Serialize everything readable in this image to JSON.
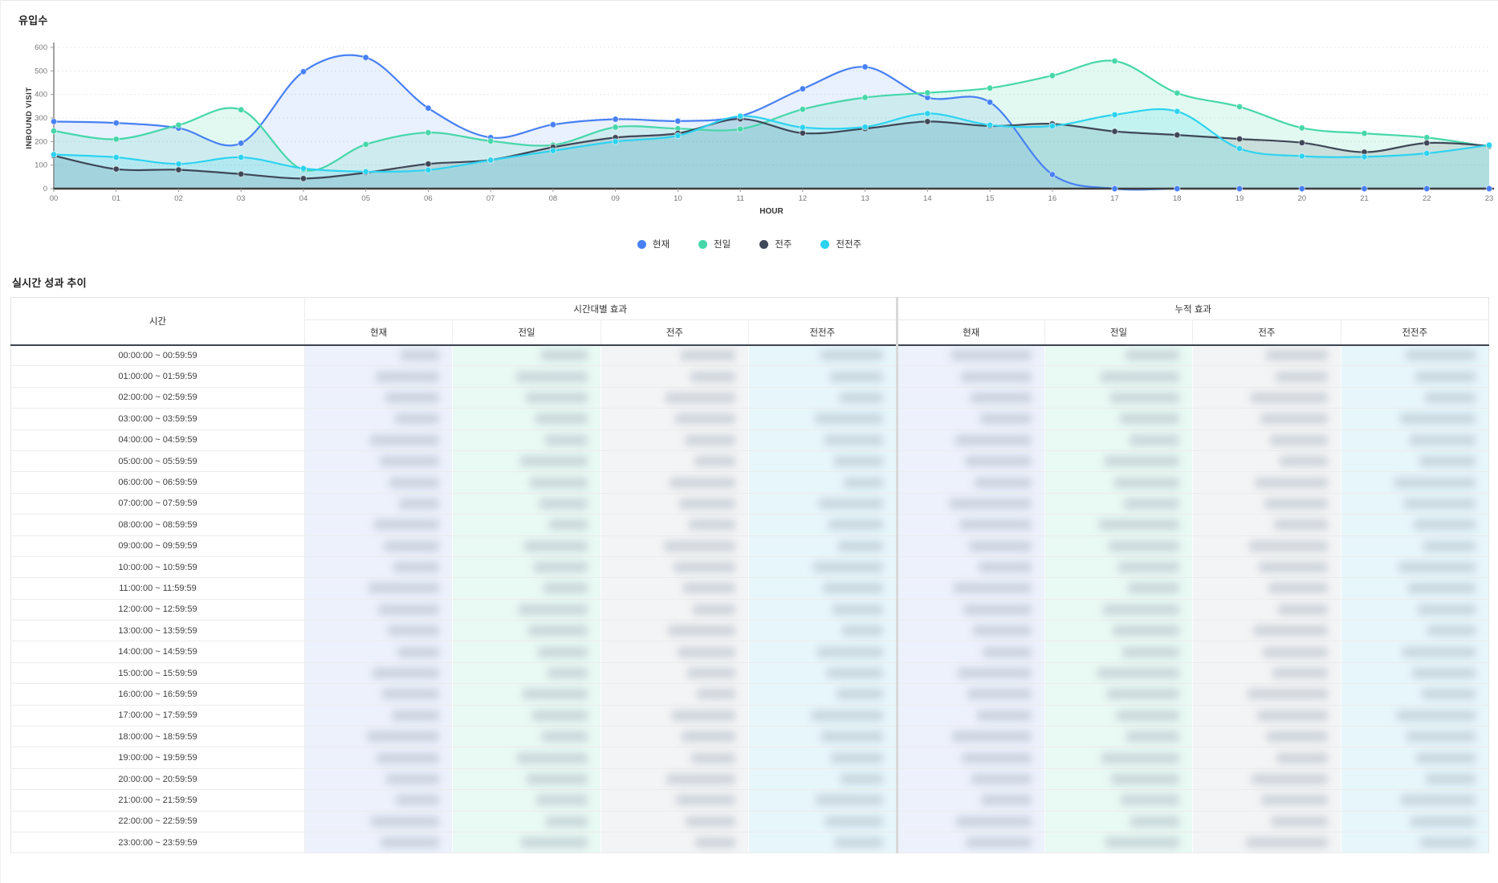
{
  "chart": {
    "title": "유입수",
    "ylabel": "INBOUND VISIT",
    "xlabel": "HOUR",
    "y_ticks": [
      0,
      100,
      200,
      300,
      400,
      500,
      600
    ],
    "x_ticks": [
      "00",
      "01",
      "02",
      "03",
      "04",
      "05",
      "06",
      "07",
      "08",
      "09",
      "10",
      "11",
      "12",
      "13",
      "14",
      "15",
      "16",
      "17",
      "18",
      "19",
      "20",
      "21",
      "22",
      "23"
    ]
  },
  "chart_data": {
    "type": "line",
    "title": "유입수",
    "xlabel": "HOUR",
    "ylabel": "INBOUND VISIT",
    "x": [
      0,
      1,
      2,
      3,
      4,
      5,
      6,
      7,
      8,
      9,
      10,
      11,
      12,
      13,
      14,
      15,
      16,
      17,
      18,
      19,
      20,
      21,
      22,
      23
    ],
    "ylim": [
      0,
      600
    ],
    "grid": true,
    "legend_position": "bottom",
    "series": [
      {
        "name": "현재",
        "color": "#4780f4",
        "fill": "rgba(71,128,244,0.12)",
        "values": [
          285,
          279,
          257,
          193,
          497,
          557,
          342,
          217,
          272,
          295,
          287,
          308,
          424,
          517,
          387,
          367,
          60,
          0,
          0,
          0,
          0,
          0,
          0,
          0
        ]
      },
      {
        "name": "전일",
        "color": "#46d7a9",
        "fill": "rgba(70,215,169,0.16)",
        "values": [
          245,
          210,
          270,
          335,
          80,
          188,
          238,
          202,
          185,
          261,
          255,
          253,
          337,
          387,
          407,
          427,
          480,
          542,
          406,
          348,
          258,
          235,
          217,
          178
        ]
      },
      {
        "name": "전주",
        "color": "#3e4757",
        "fill": "rgba(62,71,87,0.14)",
        "values": [
          140,
          83,
          80,
          62,
          43,
          68,
          105,
          122,
          176,
          217,
          235,
          296,
          236,
          255,
          285,
          266,
          275,
          243,
          228,
          211,
          195,
          155,
          194,
          182
        ]
      },
      {
        "name": "전전주",
        "color": "#2cd3f0",
        "fill": "rgba(44,211,240,0.16)",
        "values": [
          145,
          133,
          105,
          133,
          86,
          72,
          79,
          121,
          161,
          200,
          225,
          308,
          260,
          262,
          319,
          270,
          266,
          314,
          328,
          170,
          138,
          135,
          150,
          185
        ]
      }
    ]
  },
  "table": {
    "title": "실시간 성과 추이",
    "time_header": "시간",
    "groups": [
      {
        "label": "시간대별 효과",
        "cols": [
          "현재",
          "전일",
          "전주",
          "전전주"
        ]
      },
      {
        "label": "누적 효과",
        "cols": [
          "현재",
          "전일",
          "전주",
          "전전주"
        ]
      }
    ],
    "column_tints": {
      "현재": "#edf1fc",
      "전일": "#e9f9f3",
      "전주": "#f3f4f5",
      "전전주": "#e7f6fb"
    },
    "rows": [
      "00:00:00 ~ 00:59:59",
      "01:00:00 ~ 01:59:59",
      "02:00:00 ~ 02:59:59",
      "03:00:00 ~ 03:59:59",
      "04:00:00 ~ 04:59:59",
      "05:00:00 ~ 05:59:59",
      "06:00:00 ~ 06:59:59",
      "07:00:00 ~ 07:59:59",
      "08:00:00 ~ 08:59:59",
      "09:00:00 ~ 09:59:59",
      "10:00:00 ~ 10:59:59",
      "11:00:00 ~ 11:59:59",
      "12:00:00 ~ 12:59:59",
      "13:00:00 ~ 13:59:59",
      "14:00:00 ~ 14:59:59",
      "15:00:00 ~ 15:59:59",
      "16:00:00 ~ 16:59:59",
      "17:00:00 ~ 17:59:59",
      "18:00:00 ~ 18:59:59",
      "19:00:00 ~ 19:59:59",
      "20:00:00 ~ 20:59:59",
      "21:00:00 ~ 21:59:59",
      "22:00:00 ~ 22:59:59",
      "23:00:00 ~ 23:59:59"
    ],
    "values_redacted": true
  }
}
